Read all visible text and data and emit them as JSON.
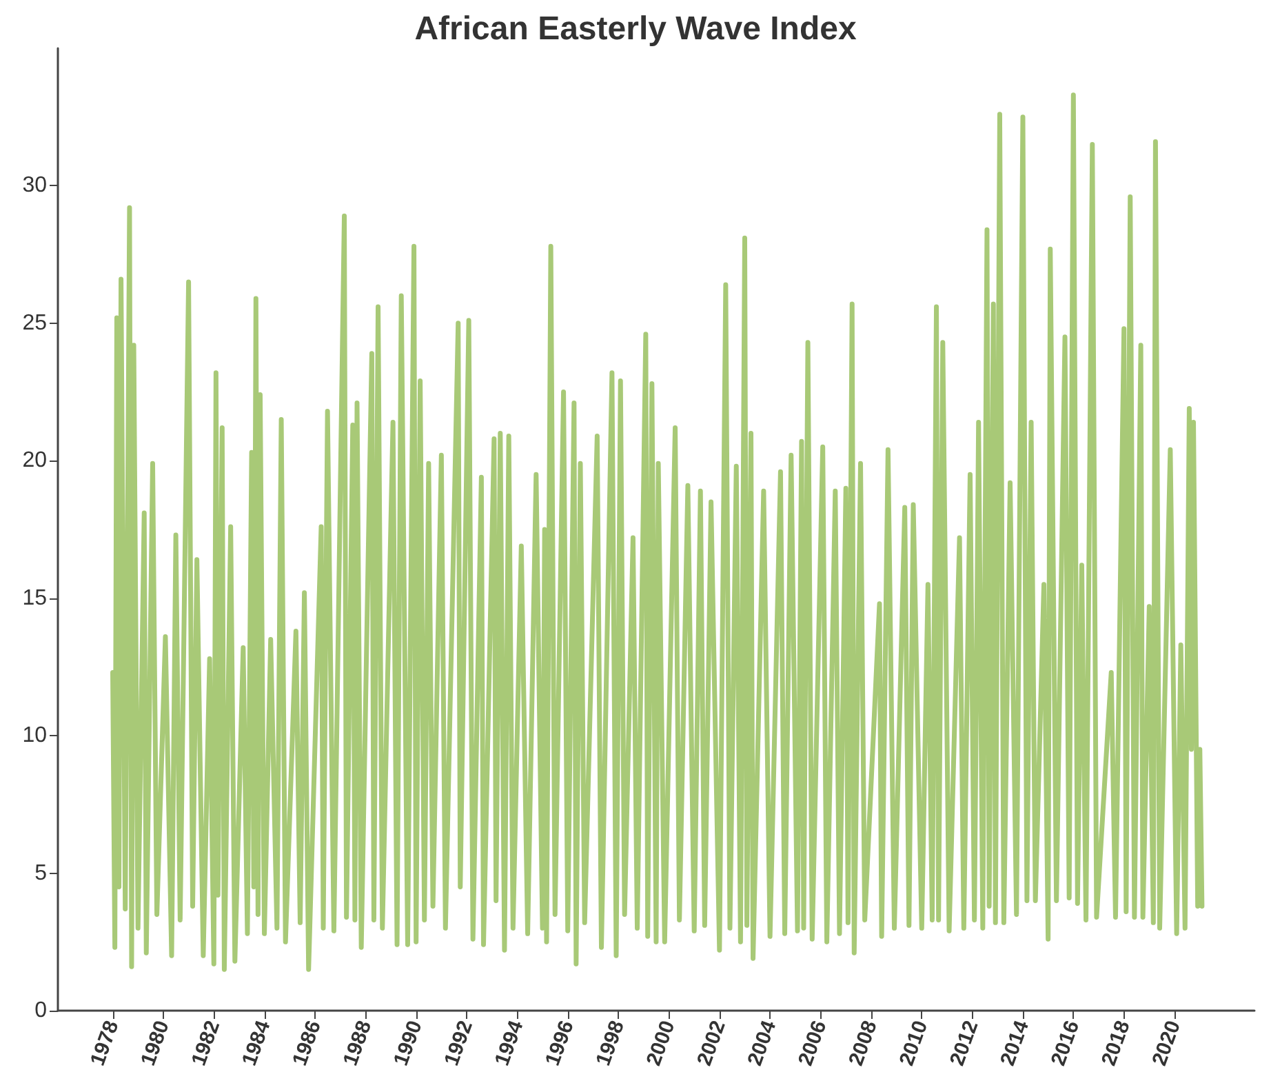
{
  "chart_data": {
    "type": "line",
    "title": "African Easterly Wave Index",
    "x": [
      "1978-01",
      "1978-02",
      "1978-03",
      "1978-04",
      "1978-05",
      "1978-07",
      "1978-09",
      "1978-10",
      "1978-11",
      "1979-01",
      "1979-04",
      "1979-05",
      "1979-08",
      "1979-10",
      "1980-02",
      "1980-05",
      "1980-07",
      "1980-09",
      "1981-01",
      "1981-03",
      "1981-05",
      "1981-08",
      "1981-11",
      "1982-01",
      "1982-02",
      "1982-03",
      "1982-05",
      "1982-06",
      "1982-09",
      "1982-11",
      "1983-03",
      "1983-05",
      "1983-07",
      "1983-08",
      "1983-09",
      "1983-10",
      "1983-11",
      "1984-01",
      "1984-04",
      "1984-07",
      "1984-09",
      "1984-11",
      "1985-04",
      "1985-06",
      "1985-08",
      "1985-10",
      "1986-04",
      "1986-05",
      "1986-07",
      "1986-10",
      "1987-03",
      "1987-04",
      "1987-07",
      "1987-08",
      "1987-09",
      "1987-11",
      "1988-04",
      "1988-05",
      "1988-07",
      "1988-09",
      "1989-02",
      "1989-04",
      "1989-06",
      "1989-09",
      "1989-12",
      "1990-01",
      "1990-03",
      "1990-05",
      "1990-07",
      "1990-09",
      "1991-01",
      "1991-03",
      "1991-09",
      "1991-10",
      "1992-02",
      "1992-04",
      "1992-08",
      "1992-09",
      "1993-02",
      "1993-03",
      "1993-05",
      "1993-07",
      "1993-09",
      "1993-11",
      "1994-03",
      "1994-06",
      "1994-10",
      "1995-01",
      "1995-02",
      "1995-03",
      "1995-05",
      "1995-07",
      "1995-11",
      "1996-01",
      "1996-04",
      "1996-05",
      "1996-07",
      "1996-09",
      "1997-03",
      "1997-05",
      "1997-10",
      "1997-12",
      "1998-02",
      "1998-04",
      "1998-08",
      "1998-10",
      "1999-02",
      "1999-03",
      "1999-05",
      "1999-07",
      "1999-08",
      "1999-11",
      "2000-04",
      "2000-06",
      "2000-10",
      "2001-01",
      "2001-04",
      "2001-06",
      "2001-09",
      "2002-01",
      "2002-04",
      "2002-06",
      "2002-09",
      "2002-11",
      "2003-01",
      "2003-02",
      "2003-04",
      "2003-05",
      "2003-10",
      "2004-01",
      "2004-06",
      "2004-08",
      "2004-11",
      "2005-02",
      "2005-04",
      "2005-05",
      "2005-07",
      "2005-09",
      "2006-02",
      "2006-04",
      "2006-08",
      "2006-10",
      "2007-01",
      "2007-02",
      "2007-04",
      "2007-05",
      "2007-08",
      "2007-10",
      "2008-05",
      "2008-06",
      "2008-09",
      "2008-12",
      "2009-05",
      "2009-07",
      "2009-09",
      "2010-01",
      "2010-04",
      "2010-06",
      "2010-08",
      "2010-09",
      "2010-11",
      "2011-02",
      "2011-07",
      "2011-09",
      "2011-12",
      "2012-02",
      "2012-04",
      "2012-06",
      "2012-08",
      "2012-09",
      "2012-11",
      "2012-12",
      "2013-02",
      "2013-04",
      "2013-07",
      "2013-10",
      "2014-01",
      "2014-03",
      "2014-05",
      "2014-07",
      "2014-11",
      "2015-01",
      "2015-02",
      "2015-05",
      "2015-09",
      "2015-11",
      "2016-01",
      "2016-03",
      "2016-05",
      "2016-07",
      "2016-10",
      "2016-12",
      "2017-07",
      "2017-09",
      "2018-01",
      "2018-02",
      "2018-04",
      "2018-06",
      "2018-09",
      "2018-10",
      "2019-01",
      "2019-03",
      "2019-04",
      "2019-06",
      "2019-11",
      "2020-02",
      "2020-04",
      "2020-06",
      "2020-08",
      "2020-09",
      "2020-10",
      "2020-12",
      "2021-01",
      "2021-02"
    ],
    "values": [
      12.3,
      2.3,
      25.2,
      4.5,
      26.6,
      3.7,
      29.2,
      1.6,
      24.2,
      3.0,
      18.1,
      2.1,
      19.9,
      3.5,
      13.6,
      2.0,
      17.3,
      3.3,
      26.5,
      3.8,
      16.4,
      2.0,
      12.8,
      1.7,
      23.2,
      4.2,
      21.2,
      1.5,
      17.6,
      1.8,
      13.2,
      2.8,
      20.3,
      4.5,
      25.9,
      3.5,
      22.4,
      2.8,
      13.5,
      3.0,
      21.5,
      2.5,
      13.8,
      3.2,
      15.2,
      1.5,
      17.6,
      3.0,
      21.8,
      2.9,
      28.9,
      3.4,
      21.3,
      3.3,
      22.1,
      2.3,
      23.9,
      3.3,
      25.6,
      3.0,
      21.4,
      2.4,
      26.0,
      2.4,
      27.8,
      2.5,
      22.9,
      3.3,
      19.9,
      3.8,
      20.2,
      3.0,
      25.0,
      4.5,
      25.1,
      2.6,
      19.4,
      2.4,
      20.8,
      4.0,
      21.0,
      2.2,
      20.9,
      3.0,
      16.9,
      2.8,
      19.5,
      3.0,
      17.5,
      2.5,
      27.8,
      3.5,
      22.5,
      2.9,
      22.1,
      1.7,
      19.9,
      3.2,
      20.9,
      2.3,
      23.2,
      2.0,
      22.9,
      3.5,
      17.2,
      3.0,
      24.6,
      2.7,
      22.8,
      2.5,
      19.9,
      2.5,
      21.2,
      3.3,
      19.1,
      2.9,
      18.9,
      3.1,
      18.5,
      2.2,
      26.4,
      3.0,
      19.8,
      2.5,
      28.1,
      3.1,
      21.0,
      1.9,
      18.9,
      2.7,
      19.6,
      2.8,
      20.2,
      2.9,
      20.7,
      3.0,
      24.3,
      2.6,
      20.5,
      2.5,
      18.9,
      2.8,
      19.0,
      3.2,
      25.7,
      2.1,
      19.9,
      3.3,
      14.8,
      2.7,
      20.4,
      3.0,
      18.3,
      3.1,
      18.4,
      3.0,
      15.5,
      3.3,
      25.6,
      3.3,
      24.3,
      2.9,
      17.2,
      3.0,
      19.5,
      3.3,
      21.4,
      3.0,
      28.4,
      3.8,
      25.7,
      3.2,
      32.6,
      3.2,
      19.2,
      3.5,
      32.5,
      4.0,
      21.4,
      4.0,
      15.5,
      2.6,
      27.7,
      4.0,
      24.5,
      4.1,
      33.3,
      3.9,
      16.2,
      3.3,
      31.5,
      3.4,
      12.3,
      3.4,
      24.8,
      3.6,
      29.6,
      3.4,
      24.2,
      3.4,
      14.7,
      3.2,
      31.6,
      3.0,
      20.4,
      2.8,
      13.3,
      3.0,
      21.9,
      9.5,
      21.4,
      3.8,
      9.5,
      3.8
    ],
    "color": "#a8c977",
    "line_style": "solid",
    "marker": "none",
    "grid": false,
    "xlim": [
      "1975-11",
      "2023-03"
    ],
    "xticks": [
      "1978",
      "1980",
      "1982",
      "1984",
      "1986",
      "1988",
      "1990",
      "1992",
      "1994",
      "1996",
      "1998",
      "2000",
      "2002",
      "2004",
      "2006",
      "2008",
      "2010",
      "2012",
      "2014",
      "2016",
      "2018",
      "2020"
    ],
    "ylim": [
      0,
      35
    ],
    "yticks": [
      0,
      5,
      10,
      15,
      20,
      25,
      30
    ]
  }
}
